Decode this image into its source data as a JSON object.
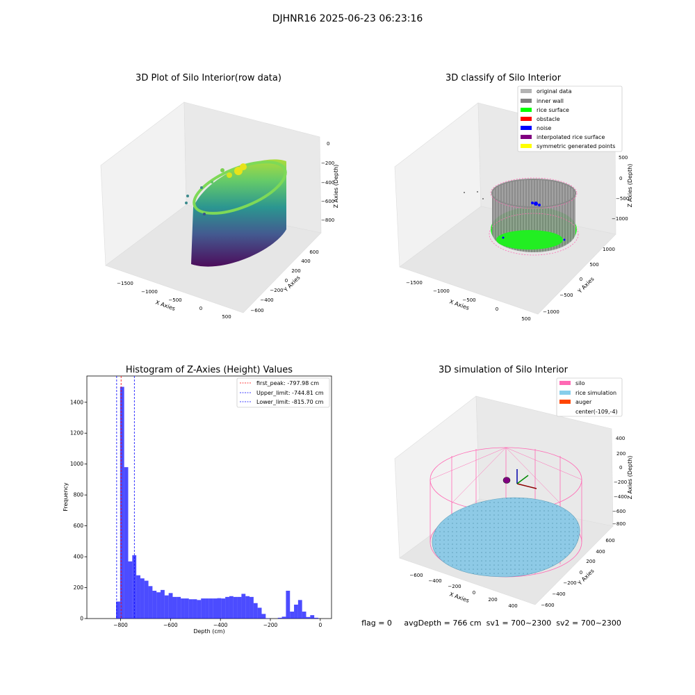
{
  "suptitle": "DJHNR16 2025-06-23 06:23:16",
  "panels": {
    "raw": {
      "title": "3D Plot of Silo Interior(row data)",
      "xlabel": "X Axies",
      "ylabel": "Y Axies",
      "zlabel": "Z Axies (Depth)",
      "xticks": [
        "−1500",
        "−1000",
        "−500",
        "0",
        "500"
      ],
      "yticks": [
        "600",
        "400",
        "200",
        "0",
        "−200",
        "−400",
        "−600"
      ],
      "zticks": [
        "0",
        "−200",
        "−400",
        "−600",
        "−800"
      ],
      "colormap": "viridis"
    },
    "classify": {
      "title": "3D classify of Silo Interior",
      "xlabel": "X Axies",
      "ylabel": "Y Axies",
      "zlabel": "Z Axies (Depth)",
      "xticks": [
        "−1500",
        "−1000",
        "−500",
        "0",
        "500"
      ],
      "yticks": [
        "1000",
        "500",
        "0",
        "−500",
        "−1000"
      ],
      "zticks": [
        "500",
        "0",
        "−500",
        "−1000"
      ],
      "legend": [
        {
          "label": "original data",
          "color": "#b3b3b3"
        },
        {
          "label": "inner wall",
          "color": "#808080"
        },
        {
          "label": "rice surface",
          "color": "#00ff00"
        },
        {
          "label": "obstacle",
          "color": "#ff0000"
        },
        {
          "label": "noise",
          "color": "#0000ff"
        },
        {
          "label": "interpolated rice surface",
          "color": "#800080"
        },
        {
          "label": "symmetric generated points",
          "color": "#ffff00"
        }
      ]
    },
    "simulation": {
      "title": "3D simulation of Silo Interior",
      "xlabel": "X Axies",
      "ylabel": "Y Axies",
      "zlabel": "Z Axies (Depth)",
      "xticks": [
        "−600",
        "−400",
        "−200",
        "0",
        "200",
        "400"
      ],
      "yticks": [
        "600",
        "400",
        "200",
        "0",
        "−200",
        "−400",
        "−600"
      ],
      "zticks": [
        "400",
        "200",
        "0",
        "−200",
        "−400",
        "−600",
        "−800"
      ],
      "legend": [
        {
          "label": "silo",
          "color": "#ff69b4"
        },
        {
          "label": "rice simulation",
          "color": "#87ceeb"
        },
        {
          "label": "auger",
          "color": "#ff4500"
        },
        {
          "label": "center(-109,-4)",
          "color": ""
        }
      ],
      "status": "flag = 0     avgDepth = 766 cm  sv1 = 700~2300  sv2 = 700~2300"
    }
  },
  "chart_data": [
    {
      "type": "bar",
      "title": "Histogram of Z-Axies (Height) Values",
      "xlabel": "Depth (cm)",
      "ylabel": "Frequency",
      "xlim": [
        -935,
        45
      ],
      "ylim": [
        0,
        1570
      ],
      "xticks": [
        -800,
        -600,
        -400,
        -200,
        0
      ],
      "xtick_labels": [
        "−800",
        "−600",
        "−400",
        "−200",
        "0"
      ],
      "yticks": [
        0,
        200,
        400,
        600,
        800,
        1000,
        1200,
        1400
      ],
      "bin_width": 16.2,
      "bins": [
        [
          -818,
          110
        ],
        [
          -801.8,
          1500
        ],
        [
          -785.6,
          980
        ],
        [
          -769.4,
          370
        ],
        [
          -753.2,
          410
        ],
        [
          -737,
          280
        ],
        [
          -720.8,
          260
        ],
        [
          -704.6,
          245
        ],
        [
          -688.4,
          210
        ],
        [
          -672.2,
          180
        ],
        [
          -656,
          170
        ],
        [
          -639.8,
          185
        ],
        [
          -623.6,
          150
        ],
        [
          -607.4,
          165
        ],
        [
          -591.2,
          140
        ],
        [
          -575,
          140
        ],
        [
          -558.8,
          130
        ],
        [
          -542.6,
          130
        ],
        [
          -526.4,
          125
        ],
        [
          -510.2,
          125
        ],
        [
          -494,
          120
        ],
        [
          -477.8,
          130
        ],
        [
          -461.6,
          130
        ],
        [
          -445.4,
          130
        ],
        [
          -429.2,
          130
        ],
        [
          -413,
          132
        ],
        [
          -396.8,
          130
        ],
        [
          -380.6,
          140
        ],
        [
          -364.4,
          145
        ],
        [
          -348.2,
          140
        ],
        [
          -332,
          140
        ],
        [
          -315.8,
          160
        ],
        [
          -299.6,
          145
        ],
        [
          -283.4,
          140
        ],
        [
          -267.2,
          100
        ],
        [
          -251,
          70
        ],
        [
          -234.8,
          30
        ],
        [
          -218.6,
          2
        ],
        [
          -202.4,
          0
        ],
        [
          -186.2,
          0
        ],
        [
          -170,
          5
        ],
        [
          -153.8,
          12
        ],
        [
          -137.6,
          180
        ],
        [
          -121.4,
          45
        ],
        [
          -105.2,
          90
        ],
        [
          -89,
          120
        ],
        [
          -72.8,
          45
        ],
        [
          -56.6,
          10
        ],
        [
          -40.4,
          22
        ],
        [
          -24.2,
          5
        ]
      ],
      "bar_color": "#0000ff",
      "vlines": [
        {
          "label": "first_peak: -797.98 cm",
          "x": -797.98,
          "color": "#ff0000"
        },
        {
          "label": "Upper_limit: -744.81 cm",
          "x": -744.81,
          "color": "#0000ff"
        },
        {
          "label": "Lower_limit: -815.70 cm",
          "x": -815.7,
          "color": "#0000ff"
        }
      ],
      "legend_position": "top-right",
      "grid": false
    }
  ]
}
